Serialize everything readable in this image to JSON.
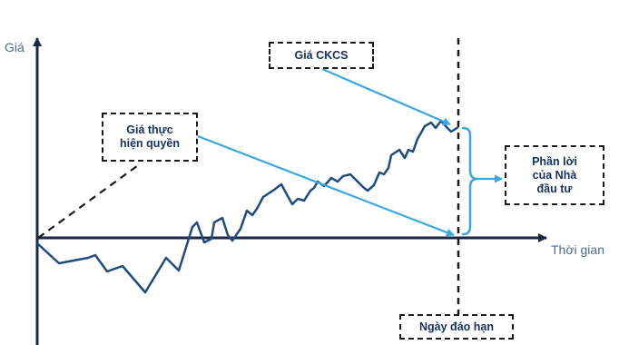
{
  "axes": {
    "y_label": "Giá",
    "x_label": "Thời gian"
  },
  "callouts": {
    "underlying_price": "Giá CKCS",
    "strike_price": "Giá thực\nhiện quyền",
    "investor_profit": "Phần lời\ncủa Nhà\nđầu tư",
    "expiry_date": "Ngày đáo hạn"
  },
  "colors": {
    "axis": "#1a2a44",
    "price_line": "#1f4c7e",
    "arrow": "#3aa7de",
    "brace": "#3aa7de",
    "dashed": "#1a1a1a",
    "label_text": "#4a6e91",
    "callout_text": "#14315e"
  }
}
